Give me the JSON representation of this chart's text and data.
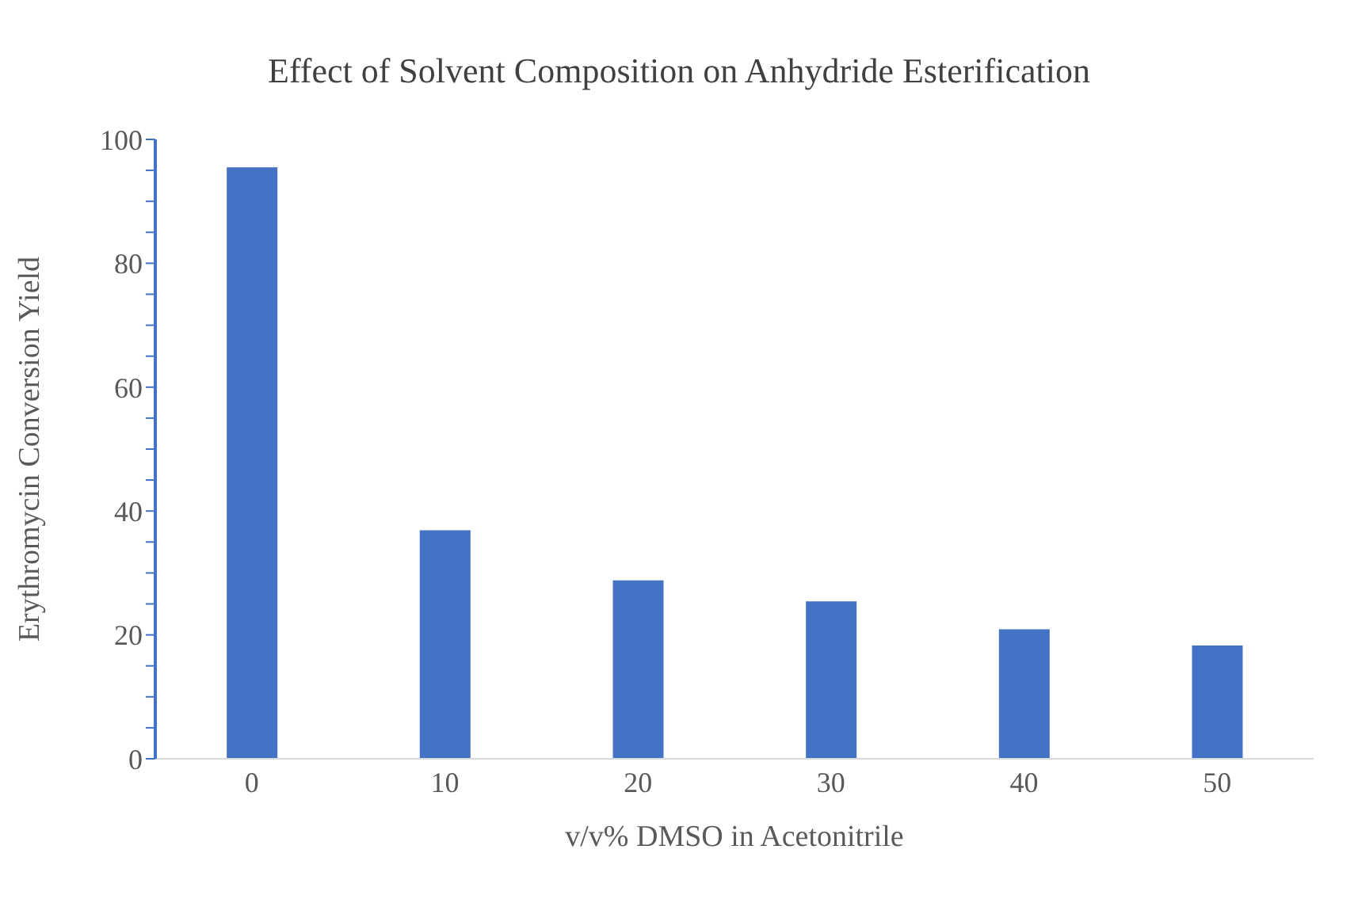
{
  "chart_data": {
    "type": "bar",
    "title": "Effect of Solvent Composition on Anhydride Esterification",
    "xlabel": "v/v% DMSO in Acetonitrile",
    "ylabel": "Erythromycin Conversion Yield",
    "categories": [
      "0",
      "10",
      "20",
      "30",
      "40",
      "50"
    ],
    "series": [
      {
        "color": "#4472c4",
        "values": [
          95.5,
          36.9,
          28.8,
          25.4,
          20.9,
          18.3
        ]
      }
    ],
    "ylim": [
      0,
      100
    ],
    "yticks": [
      0,
      {
        "value": 5,
        "label": null
      },
      {
        "value": 10,
        "label": null
      },
      {
        "value": 15,
        "label": null
      },
      20,
      {
        "value": 25,
        "label": null
      },
      {
        "value": 30,
        "label": null
      },
      {
        "value": 35,
        "label": null
      },
      40,
      {
        "value": 45,
        "label": null
      },
      {
        "value": 50,
        "label": null
      },
      {
        "value": 55,
        "label": null
      },
      60,
      {
        "value": 65,
        "label": null
      },
      {
        "value": 70,
        "label": null
      },
      {
        "value": 75,
        "label": null
      },
      80,
      {
        "value": 85,
        "label": null
      },
      {
        "value": 90,
        "label": null
      },
      {
        "value": 95,
        "label": null
      },
      100
    ],
    "grid": false,
    "legend": false
  }
}
